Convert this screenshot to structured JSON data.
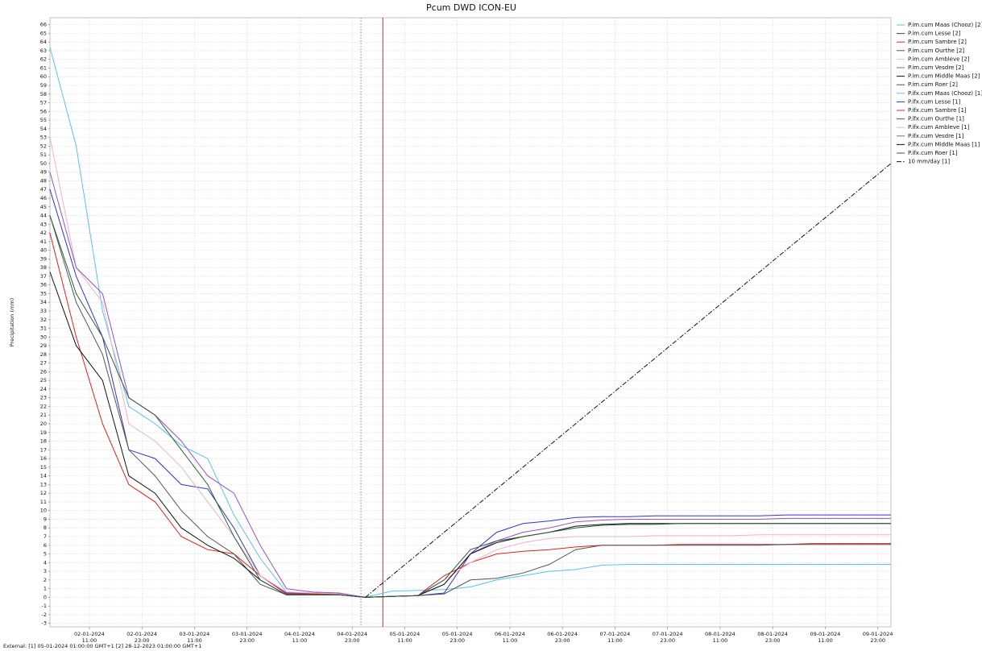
{
  "chart_data": {
    "type": "line",
    "title": "Pcum DWD ICON-EU",
    "y_label": "Precipitation (mm)",
    "note": "External: [1] 05-01-2024 01:00:00 GMT+1 [2] 28-12-2023 01:00:00 GMT+1",
    "grid": true,
    "legend": "right",
    "xlim": [
      "2024-01-02T02:00",
      "2024-01-10T02:00"
    ],
    "ylim": [
      -3.4,
      66.8
    ],
    "yticks": [
      -3,
      -2,
      -1,
      0,
      1,
      2,
      3,
      4,
      5,
      6,
      7,
      8,
      9,
      10,
      11,
      12,
      13,
      14,
      15,
      16,
      17,
      18,
      19,
      20,
      21,
      22,
      23,
      24,
      25,
      26,
      27,
      28,
      29,
      30,
      31,
      32,
      33,
      34,
      35,
      36,
      37,
      38,
      39,
      40,
      41,
      42,
      43,
      44,
      45,
      46,
      47,
      48,
      49,
      50,
      51,
      52,
      53,
      54,
      55,
      56,
      57,
      58,
      59,
      60,
      61,
      62,
      63,
      64,
      65,
      66
    ],
    "xticks": [
      {
        "value": "2024-01-02T11:00",
        "label": [
          "02-01-2024",
          "11:00"
        ]
      },
      {
        "value": "2024-01-02T23:00",
        "label": [
          "02-01-2024",
          "23:00"
        ]
      },
      {
        "value": "2024-01-03T11:00",
        "label": [
          "03-01-2024",
          "11:00"
        ]
      },
      {
        "value": "2024-01-03T23:00",
        "label": [
          "03-01-2024",
          "23:00"
        ]
      },
      {
        "value": "2024-01-04T11:00",
        "label": [
          "04-01-2024",
          "11:00"
        ]
      },
      {
        "value": "2024-01-04T23:00",
        "label": [
          "04-01-2024",
          "23:00"
        ]
      },
      {
        "value": "2024-01-05T11:00",
        "label": [
          "05-01-2024",
          "11:00"
        ]
      },
      {
        "value": "2024-01-05T23:00",
        "label": [
          "05-01-2024",
          "23:00"
        ]
      },
      {
        "value": "2024-01-06T11:00",
        "label": [
          "06-01-2024",
          "11:00"
        ]
      },
      {
        "value": "2024-01-06T23:00",
        "label": [
          "06-01-2024",
          "23:00"
        ]
      },
      {
        "value": "2024-01-07T11:00",
        "label": [
          "07-01-2024",
          "11:00"
        ]
      },
      {
        "value": "2024-01-07T23:00",
        "label": [
          "07-01-2024",
          "23:00"
        ]
      },
      {
        "value": "2024-01-08T11:00",
        "label": [
          "08-01-2024",
          "11:00"
        ]
      },
      {
        "value": "2024-01-08T23:00",
        "label": [
          "08-01-2024",
          "23:00"
        ]
      },
      {
        "value": "2024-01-09T11:00",
        "label": [
          "09-01-2024",
          "11:00"
        ]
      },
      {
        "value": "2024-01-09T23:00",
        "label": [
          "09-01-2024",
          "23:00"
        ]
      }
    ],
    "markers": [
      {
        "x": "2024-01-05T01:00",
        "color": "#9a9a9a",
        "dash": "dotted"
      },
      {
        "x": "2024-01-05T06:00",
        "color": "#e02020",
        "dash": "solid"
      }
    ],
    "x": [
      "2024-01-02T02:00",
      "2024-01-02T08:00",
      "2024-01-02T14:00",
      "2024-01-02T20:00",
      "2024-01-03T02:00",
      "2024-01-03T08:00",
      "2024-01-03T14:00",
      "2024-01-03T20:00",
      "2024-01-04T02:00",
      "2024-01-04T08:00",
      "2024-01-04T14:00",
      "2024-01-04T20:00",
      "2024-01-05T02:00",
      "2024-01-05T08:00",
      "2024-01-05T14:00",
      "2024-01-05T20:00",
      "2024-01-06T02:00",
      "2024-01-06T08:00",
      "2024-01-06T14:00",
      "2024-01-06T20:00",
      "2024-01-07T02:00",
      "2024-01-07T08:00",
      "2024-01-07T14:00",
      "2024-01-07T20:00",
      "2024-01-08T02:00",
      "2024-01-08T08:00",
      "2024-01-08T14:00",
      "2024-01-08T20:00",
      "2024-01-09T02:00",
      "2024-01-09T08:00",
      "2024-01-09T14:00",
      "2024-01-09T20:00",
      "2024-01-10T02:00"
    ],
    "series": [
      {
        "name": "P.im.cum Maas (Chooz) [2]",
        "color": "#5bc0eb",
        "dash": "solid",
        "values": [
          63.4,
          52,
          33,
          22,
          20,
          17.5,
          16,
          9.5,
          4.5,
          0.6,
          0.4,
          0.3,
          0,
          null,
          null,
          null,
          null,
          null,
          null,
          null,
          null,
          null,
          null,
          null,
          null,
          null,
          null,
          null,
          null,
          null,
          null,
          null,
          null
        ]
      },
      {
        "name": "P.im.cum Lesse [2]",
        "color": "#3333cc",
        "dash": "solid",
        "values": [
          47,
          37,
          30,
          17,
          16,
          13,
          12.5,
          8,
          2.5,
          0.5,
          0.5,
          0.4,
          0,
          null,
          null,
          null,
          null,
          null,
          null,
          null,
          null,
          null,
          null,
          null,
          null,
          null,
          null,
          null,
          null,
          null,
          null,
          null,
          null
        ]
      },
      {
        "name": "P.im.cum Sambre [2]",
        "color": "#e02020",
        "dash": "solid",
        "values": [
          42,
          30,
          20,
          13,
          11,
          7,
          5.5,
          5,
          2.5,
          0.4,
          0.4,
          0.4,
          0,
          null,
          null,
          null,
          null,
          null,
          null,
          null,
          null,
          null,
          null,
          null,
          null,
          null,
          null,
          null,
          null,
          null,
          null,
          null,
          null
        ]
      },
      {
        "name": "P.im.cum Ourthe [2]",
        "color": "#555555",
        "dash": "solid",
        "values": [
          44,
          34,
          28,
          17,
          14,
          10,
          7,
          5,
          1.5,
          0.3,
          0.3,
          0.3,
          0,
          null,
          null,
          null,
          null,
          null,
          null,
          null,
          null,
          null,
          null,
          null,
          null,
          null,
          null,
          null,
          null,
          null,
          null,
          null,
          null
        ]
      },
      {
        "name": "P.im.cum Ambleve [2]",
        "color": "#f0b0c8",
        "dash": "solid",
        "values": [
          53,
          38,
          34,
          20,
          18,
          15,
          11,
          7,
          2.5,
          0.6,
          0.5,
          0.4,
          0,
          null,
          null,
          null,
          null,
          null,
          null,
          null,
          null,
          null,
          null,
          null,
          null,
          null,
          null,
          null,
          null,
          null,
          null,
          null,
          null
        ]
      },
      {
        "name": "P.im.cum Vesdre [2]",
        "color": "#9b4fc4",
        "dash": "solid",
        "values": [
          49,
          38,
          35,
          23,
          21,
          18,
          14,
          12,
          6,
          1,
          0.6,
          0.5,
          0,
          null,
          null,
          null,
          null,
          null,
          null,
          null,
          null,
          null,
          null,
          null,
          null,
          null,
          null,
          null,
          null,
          null,
          null,
          null,
          null
        ]
      },
      {
        "name": "P.im.cum Middle Maas [2]",
        "color": "#111111",
        "dash": "solid",
        "values": [
          37.5,
          29,
          25,
          14,
          12,
          8,
          6,
          4.5,
          2,
          0.3,
          0.3,
          0.3,
          0,
          null,
          null,
          null,
          null,
          null,
          null,
          null,
          null,
          null,
          null,
          null,
          null,
          null,
          null,
          null,
          null,
          null,
          null,
          null,
          null
        ]
      },
      {
        "name": "P.im.cum Roer [2]",
        "color": "#2e5d3a",
        "dash": "solid",
        "values": [
          44,
          35,
          30,
          23,
          21,
          17,
          13,
          7,
          2,
          0.3,
          0.3,
          0.3,
          0,
          null,
          null,
          null,
          null,
          null,
          null,
          null,
          null,
          null,
          null,
          null,
          null,
          null,
          null,
          null,
          null,
          null,
          null,
          null,
          null
        ]
      },
      {
        "name": "P.ifx.cum Maas (Chooz) [1]",
        "color": "#5bc0eb",
        "dash": "solid",
        "values": [
          null,
          null,
          null,
          null,
          null,
          null,
          null,
          null,
          null,
          null,
          null,
          null,
          0,
          0.7,
          0.8,
          0.9,
          1.2,
          2,
          2.5,
          3,
          3.2,
          3.7,
          3.8,
          3.8,
          3.8,
          3.8,
          3.8,
          3.8,
          3.8,
          3.8,
          3.8,
          3.8,
          3.8
        ]
      },
      {
        "name": "P.ifx.cum Lesse [1]",
        "color": "#3333cc",
        "dash": "solid",
        "values": [
          null,
          null,
          null,
          null,
          null,
          null,
          null,
          null,
          null,
          null,
          null,
          null,
          0,
          0.1,
          0.2,
          0.5,
          5,
          7.5,
          8.5,
          8.8,
          9.2,
          9.3,
          9.3,
          9.4,
          9.4,
          9.4,
          9.4,
          9.4,
          9.5,
          9.5,
          9.5,
          9.5,
          9.5
        ]
      },
      {
        "name": "P.ifx.cum Sambre [1]",
        "color": "#e02020",
        "dash": "solid",
        "values": [
          null,
          null,
          null,
          null,
          null,
          null,
          null,
          null,
          null,
          null,
          null,
          null,
          0,
          0.1,
          0.2,
          2.5,
          4,
          5,
          5.3,
          5.5,
          5.8,
          6,
          6,
          6,
          6.1,
          6.1,
          6.1,
          6.1,
          6.1,
          6.2,
          6.2,
          6.2,
          6.2
        ]
      },
      {
        "name": "P.ifx.cum Ourthe [1]",
        "color": "#555555",
        "dash": "solid",
        "values": [
          null,
          null,
          null,
          null,
          null,
          null,
          null,
          null,
          null,
          null,
          null,
          null,
          0,
          0.1,
          0.2,
          0.4,
          2,
          2.2,
          2.8,
          3.8,
          5.5,
          6,
          6,
          6,
          6,
          6,
          6,
          6,
          6.1,
          6.1,
          6.1,
          6.1,
          6.1
        ]
      },
      {
        "name": "P.ifx.cum Ambleve [1]",
        "color": "#f0b0c8",
        "dash": "solid",
        "values": [
          null,
          null,
          null,
          null,
          null,
          null,
          null,
          null,
          null,
          null,
          null,
          null,
          0,
          0.1,
          0.2,
          2,
          4,
          5.5,
          6.3,
          6.8,
          7,
          7,
          7,
          7.1,
          7.1,
          7.1,
          7.1,
          7.2,
          7.2,
          7.2,
          7.2,
          7.2,
          7.2
        ]
      },
      {
        "name": "P.ifx.cum Vesdre [1]",
        "color": "#9b4fc4",
        "dash": "solid",
        "values": [
          null,
          null,
          null,
          null,
          null,
          null,
          null,
          null,
          null,
          null,
          null,
          null,
          0,
          0.1,
          0.2,
          1.5,
          5,
          6.5,
          7.5,
          8,
          8.7,
          8.9,
          9,
          9,
          9,
          9,
          9,
          9,
          9.1,
          9.1,
          9.1,
          9.1,
          9.1
        ]
      },
      {
        "name": "P.ifx.cum Middle Maas [1]",
        "color": "#111111",
        "dash": "solid",
        "values": [
          null,
          null,
          null,
          null,
          null,
          null,
          null,
          null,
          null,
          null,
          null,
          null,
          0,
          0.1,
          0.2,
          1.5,
          5,
          6.3,
          7,
          7.5,
          8.2,
          8.4,
          8.5,
          8.5,
          8.5,
          8.5,
          8.5,
          8.5,
          8.5,
          8.5,
          8.5,
          8.5,
          8.5
        ]
      },
      {
        "name": "P.ifx.cum Roer [1]",
        "color": "#2e5d3a",
        "dash": "solid",
        "values": [
          null,
          null,
          null,
          null,
          null,
          null,
          null,
          null,
          null,
          null,
          null,
          null,
          0,
          0.1,
          0.2,
          2,
          5.5,
          6.5,
          7,
          7.5,
          8,
          8.3,
          8.4,
          8.4,
          8.5,
          8.5,
          8.5,
          8.5,
          8.5,
          8.5,
          8.5,
          8.5,
          8.5
        ]
      },
      {
        "name": "10 mm/day [1]",
        "color": "#111111",
        "dash": "dashdot",
        "values": [
          null,
          null,
          null,
          null,
          null,
          null,
          null,
          null,
          null,
          null,
          null,
          null,
          0,
          2.5,
          5,
          7.5,
          10,
          12.5,
          15,
          17.5,
          20,
          22.5,
          25,
          27.5,
          30,
          32.5,
          35,
          37.5,
          40,
          42.5,
          45,
          47.5,
          50
        ]
      }
    ]
  }
}
